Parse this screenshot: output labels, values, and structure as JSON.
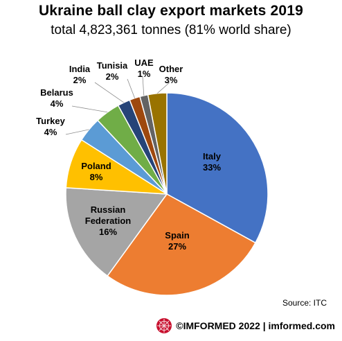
{
  "title": "Ukraine ball clay export markets 2019",
  "subtitle": "total 4,823,361 tonnes (81% world share)",
  "source": "Source: ITC",
  "footer": {
    "text": "©IMFORMED 2022  |  imformed.com",
    "logo_icon": "imformed-logo-icon",
    "logo_color": "#c8102e"
  },
  "chart_data": {
    "type": "pie",
    "start_angle_deg": 0,
    "direction": "clockwise",
    "slices": [
      {
        "label_lines": [
          "Italy"
        ],
        "pct_label": "33%",
        "value": 33,
        "color": "#4472c4",
        "label_color": "#000000",
        "label_pos": "inside"
      },
      {
        "label_lines": [
          "Spain"
        ],
        "pct_label": "27%",
        "value": 27,
        "color": "#ed7d31",
        "label_color": "#000000",
        "label_pos": "inside"
      },
      {
        "label_lines": [
          "Russian",
          "Federation"
        ],
        "pct_label": "16%",
        "value": 16,
        "color": "#a5a5a5",
        "label_color": "#000000",
        "label_pos": "inside"
      },
      {
        "label_lines": [
          "Poland"
        ],
        "pct_label": "8%",
        "value": 8,
        "color": "#ffc000",
        "label_color": "#000000",
        "label_pos": "inside"
      },
      {
        "label_lines": [
          "Turkey"
        ],
        "pct_label": "4%",
        "value": 4,
        "color": "#5b9bd5",
        "label_color": "#000000",
        "label_pos": "outside"
      },
      {
        "label_lines": [
          "Belarus"
        ],
        "pct_label": "4%",
        "value": 4,
        "color": "#70ad47",
        "label_color": "#000000",
        "label_pos": "outside"
      },
      {
        "label_lines": [
          "India"
        ],
        "pct_label": "2%",
        "value": 2,
        "color": "#264478",
        "label_color": "#000000",
        "label_pos": "outside"
      },
      {
        "label_lines": [
          "Tunisia"
        ],
        "pct_label": "2%",
        "value": 1.7,
        "color": "#9e480e",
        "label_color": "#000000",
        "label_pos": "outside"
      },
      {
        "label_lines": [
          "UAE"
        ],
        "pct_label": "1%",
        "value": 1.3,
        "color": "#636363",
        "label_color": "#000000",
        "label_pos": "outside"
      },
      {
        "label_lines": [
          "Other"
        ],
        "pct_label": "3%",
        "value": 3,
        "color": "#997300",
        "label_color": "#000000",
        "label_pos": "outside"
      }
    ]
  }
}
